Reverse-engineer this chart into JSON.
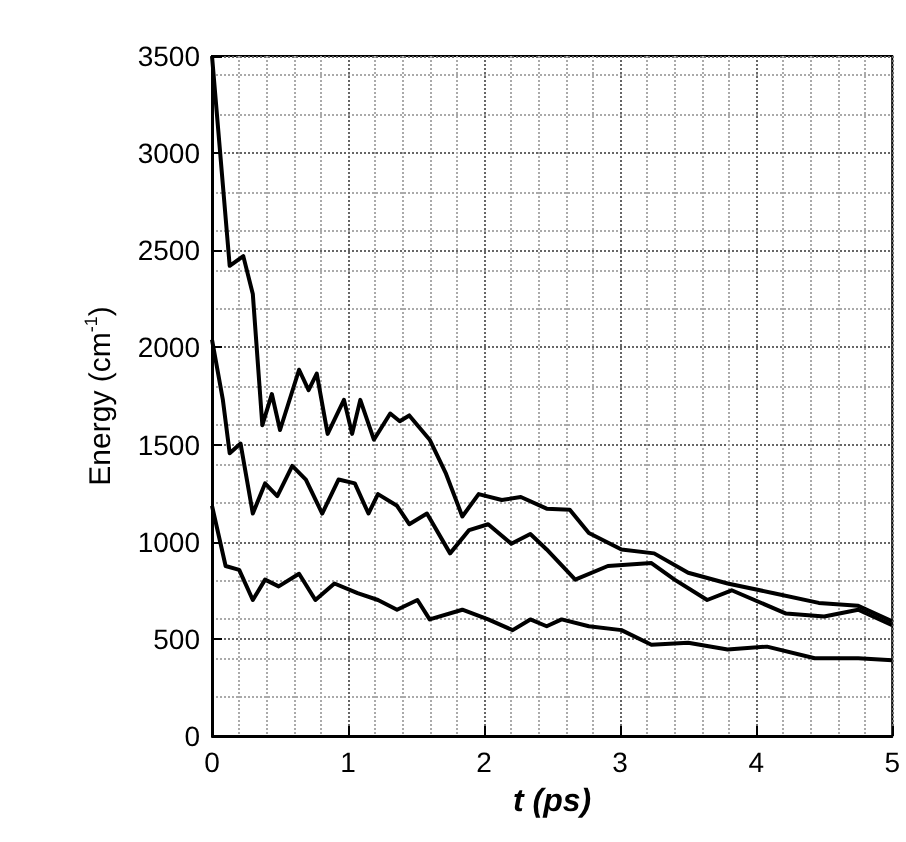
{
  "chart_data": {
    "type": "line",
    "xlabel": "t (ps)",
    "ylabel": "Energy (cm$^{-1}$)",
    "xlim": [
      0,
      5
    ],
    "xticks": [
      0,
      1,
      2,
      3,
      4,
      5
    ],
    "ylim": [
      0,
      3500
    ],
    "yticks": [
      0,
      500,
      1000,
      1500,
      2000,
      2500,
      3000,
      3500
    ],
    "grid": true,
    "marker": "none",
    "line_style": "solid",
    "series": [
      {
        "color": "#000000",
        "x": [
          0,
          0.13,
          0.23,
          0.3,
          0.37,
          0.44,
          0.5,
          0.64,
          0.71,
          0.77,
          0.85,
          0.97,
          1.03,
          1.09,
          1.19,
          1.31,
          1.38,
          1.45,
          1.6,
          1.72,
          1.84,
          1.96,
          2.13,
          2.27,
          2.46,
          2.63,
          2.77,
          3.01,
          3.25,
          3.5,
          3.79,
          4.13,
          4.46,
          4.75,
          5
        ],
        "values": [
          3500,
          2420,
          2470,
          2275,
          1600,
          1760,
          1575,
          1885,
          1780,
          1865,
          1555,
          1730,
          1555,
          1730,
          1525,
          1660,
          1620,
          1650,
          1525,
          1350,
          1130,
          1245,
          1215,
          1230,
          1170,
          1165,
          1045,
          960,
          940,
          840,
          785,
          735,
          685,
          670,
          590
        ]
      },
      {
        "color": "#000000",
        "x": [
          0,
          0.08,
          0.13,
          0.21,
          0.3,
          0.39,
          0.48,
          0.59,
          0.69,
          0.81,
          0.93,
          1.05,
          1.15,
          1.22,
          1.36,
          1.45,
          1.58,
          1.75,
          1.89,
          2.03,
          2.2,
          2.34,
          2.46,
          2.67,
          2.91,
          3.23,
          3.4,
          3.64,
          3.82,
          4.22,
          4.5,
          4.75,
          5
        ],
        "values": [
          2040,
          1730,
          1455,
          1505,
          1145,
          1300,
          1235,
          1390,
          1320,
          1145,
          1320,
          1300,
          1145,
          1245,
          1185,
          1090,
          1145,
          940,
          1060,
          1090,
          990,
          1040,
          960,
          805,
          875,
          890,
          805,
          700,
          750,
          630,
          615,
          650,
          570
        ]
      },
      {
        "color": "#000000",
        "x": [
          0,
          0.1,
          0.2,
          0.3,
          0.39,
          0.49,
          0.64,
          0.76,
          0.9,
          1.07,
          1.22,
          1.36,
          1.51,
          1.6,
          1.84,
          2.03,
          2.21,
          2.34,
          2.46,
          2.57,
          2.77,
          3.01,
          3.23,
          3.5,
          3.79,
          4.08,
          4.43,
          4.75,
          5
        ],
        "values": [
          1185,
          875,
          855,
          700,
          805,
          770,
          835,
          700,
          785,
          735,
          700,
          650,
          700,
          600,
          650,
          600,
          545,
          600,
          565,
          600,
          565,
          545,
          470,
          480,
          445,
          460,
          400,
          400,
          390
        ]
      }
    ]
  }
}
